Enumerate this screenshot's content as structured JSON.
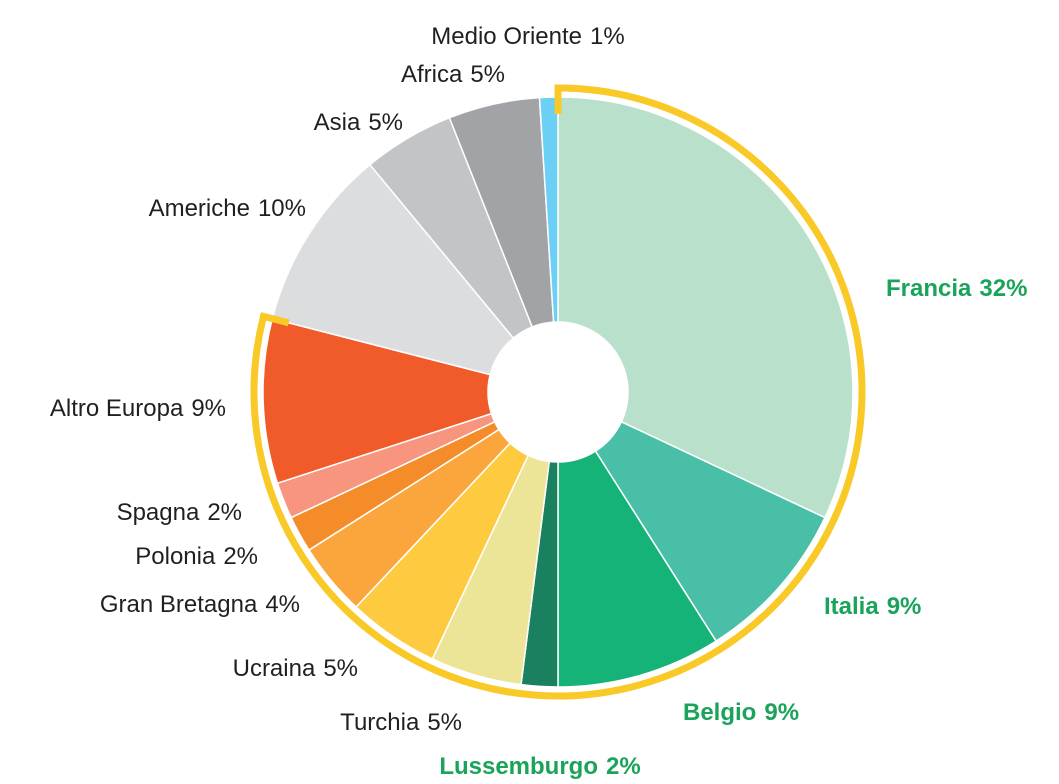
{
  "chart_data": {
    "type": "donut",
    "categories": [
      "Francia",
      "Italia",
      "Belgio",
      "Lussemburgo",
      "Turchia",
      "Ucraina",
      "Gran Bretagna",
      "Polonia",
      "Spagna",
      "Altro Europa",
      "Americhe",
      "Asia",
      "Africa",
      "Medio Oriente"
    ],
    "values": [
      32,
      9,
      9,
      2,
      5,
      5,
      4,
      2,
      2,
      9,
      10,
      5,
      5,
      1
    ],
    "value_labels": [
      "32%",
      "9%",
      "9%",
      "2%",
      "5%",
      "5%",
      "4%",
      "2%",
      "2%",
      "9%",
      "10%",
      "5%",
      "5%",
      "1%"
    ],
    "colors": [
      "#b8e0ca",
      "#49bfa8",
      "#15b378",
      "#1a8060",
      "#ece497",
      "#fecb40",
      "#fba63c",
      "#f58c2a",
      "#f7957f",
      "#f15a29",
      "#dcdddf",
      "#c3c4c6",
      "#a2a3a6",
      "#6ccff6"
    ],
    "label_colors": [
      "#1aa35a",
      "#1aa35a",
      "#1aa35a",
      "#1aa35a",
      "#231f20",
      "#231f20",
      "#231f20",
      "#231f20",
      "#231f20",
      "#231f20",
      "#231f20",
      "#231f20",
      "#231f20",
      "#231f20"
    ],
    "outlined": [
      true,
      true,
      true,
      true,
      true,
      true,
      true,
      true,
      true,
      true,
      false,
      false,
      false,
      false
    ],
    "outline_color": "#f9c928"
  }
}
